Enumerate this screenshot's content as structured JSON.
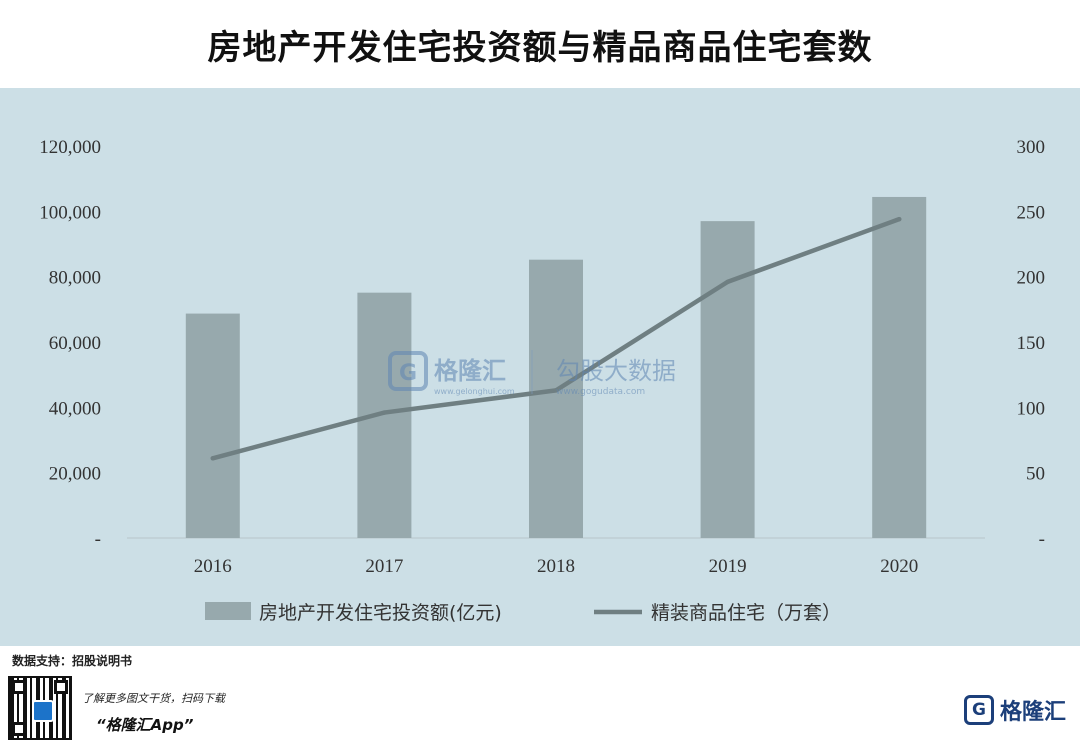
{
  "title": "房地产开发住宅投资额与精品商品住宅套数",
  "chart_data": {
    "type": "bar",
    "categories": [
      "2016",
      "2017",
      "2018",
      "2019",
      "2020"
    ],
    "series": [
      {
        "name": "房地产开发住宅投资额(亿元)",
        "type": "bar",
        "axis": "left",
        "values": [
          68700,
          75100,
          85200,
          97000,
          104400
        ],
        "color": "#97a9ad"
      },
      {
        "name": "精装商品住宅（万套）",
        "type": "line",
        "axis": "right",
        "values": [
          61,
          96,
          113,
          196,
          244
        ],
        "color": "#6f7f82"
      }
    ],
    "y_left": {
      "ylim": [
        0,
        120000
      ],
      "ticks": [
        "-",
        "20,000",
        "40,000",
        "60,000",
        "80,000",
        "100,000",
        "120,000"
      ]
    },
    "y_right": {
      "ylim": [
        0,
        300
      ],
      "ticks": [
        "-",
        "50",
        "100",
        "150",
        "200",
        "250",
        "300"
      ]
    },
    "legend_position": "bottom",
    "grid": false
  },
  "watermark": {
    "brand_cn": "格隆汇",
    "brand_url": "www.gelonghui.com",
    "data_cn": "勾股大数据",
    "data_url": "www.gogudata.com"
  },
  "footer": {
    "source": "数据支持：招股说明书",
    "promo": "了解更多图文干货，扫码下载",
    "app": "“格隆汇App”",
    "brand_name": "格隆汇",
    "brand_icon_letter": "G",
    "brand_url": "www.gelonghui.com"
  }
}
